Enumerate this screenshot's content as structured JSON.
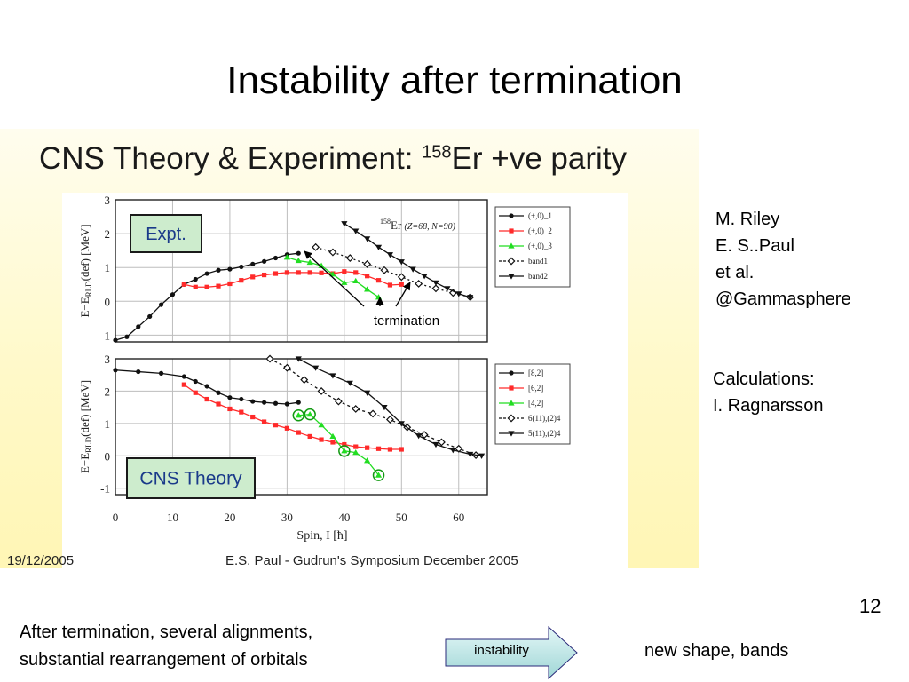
{
  "slide": {
    "title": "Instability after termination",
    "page_number": "12",
    "credits": [
      "M. Riley",
      "E. S..Paul",
      "et al.",
      "@Gammasphere"
    ],
    "calc_lines": [
      "Calculations:",
      "I. Ragnarsson"
    ],
    "bottom_lines": [
      "After termination, several alignments,",
      "substantial rearrangement of orbitals"
    ],
    "arrow_label": "instability",
    "result": "new shape, bands",
    "annotation": "termination"
  },
  "figure": {
    "title_main": "CNS Theory & Experiment: ",
    "title_sup": "158",
    "title_tail": "Er +ve parity",
    "footer_date": "19/12/2005",
    "footer_conf": "E.S. Paul - Gudrun's Symposium December 2005",
    "colors": {
      "black": "#111111",
      "red": "#ff2a2a",
      "green": "#22dd22",
      "box": "#cdeccd"
    }
  },
  "chart_data": [
    {
      "type": "line",
      "panel_label": "Expt.",
      "inset_label": "Er",
      "inset_label_sup": "158",
      "inset_label_sub": "(Z=68, N=90)",
      "ylabel": "E−E",
      "ylabel_sub": "RLD",
      "ylabel_tail": "(def) [MeV]",
      "xlim": [
        0,
        65
      ],
      "ylim": [
        -1.2,
        3
      ],
      "yticks": [
        "-1",
        "0",
        "1",
        "2",
        "3"
      ],
      "xticks": [
        "0",
        "10",
        "20",
        "30",
        "40",
        "50",
        "60"
      ],
      "grid": true,
      "legend_position": "right",
      "series": [
        {
          "name": "(+,0)_1",
          "color": "#111111",
          "marker": "circle",
          "x": [
            0,
            2,
            4,
            6,
            8,
            10,
            12,
            14,
            16,
            18,
            20,
            22,
            24,
            26,
            28,
            30,
            32
          ],
          "y": [
            -1.15,
            -1.05,
            -0.75,
            -0.45,
            -0.1,
            0.2,
            0.5,
            0.65,
            0.82,
            0.92,
            0.95,
            1.02,
            1.1,
            1.18,
            1.28,
            1.38,
            1.42
          ]
        },
        {
          "name": "(+,0)_2",
          "color": "#ff2a2a",
          "marker": "square",
          "x": [
            12,
            14,
            16,
            18,
            20,
            22,
            24,
            26,
            28,
            30,
            32,
            34,
            36,
            38,
            40,
            42,
            44,
            46,
            48,
            50
          ],
          "y": [
            0.5,
            0.42,
            0.42,
            0.45,
            0.52,
            0.62,
            0.72,
            0.78,
            0.82,
            0.85,
            0.85,
            0.85,
            0.84,
            0.82,
            0.88,
            0.85,
            0.75,
            0.62,
            0.48,
            0.5
          ]
        },
        {
          "name": "(+,0)_3",
          "color": "#22dd22",
          "marker": "triangle",
          "x": [
            30,
            32,
            34,
            36,
            38,
            40,
            42,
            44,
            46
          ],
          "y": [
            1.3,
            1.2,
            1.15,
            1.05,
            0.8,
            0.55,
            0.6,
            0.35,
            0.12
          ]
        },
        {
          "name": "band1",
          "color": "#111111",
          "marker": "open-diamond",
          "x": [
            35,
            38,
            41,
            44,
            47,
            50,
            53,
            56,
            59,
            62
          ],
          "y": [
            1.6,
            1.45,
            1.28,
            1.1,
            0.92,
            0.72,
            0.52,
            0.38,
            0.25,
            0.12
          ]
        },
        {
          "name": "band2",
          "color": "#111111",
          "marker": "down-triangle",
          "x": [
            40,
            42,
            44,
            46,
            48,
            50,
            52,
            54,
            56,
            58,
            60,
            62
          ],
          "y": [
            2.3,
            2.08,
            1.85,
            1.6,
            1.38,
            1.17,
            0.95,
            0.75,
            0.55,
            0.38,
            0.22,
            0.12
          ]
        }
      ]
    },
    {
      "type": "line",
      "panel_label": "CNS Theory",
      "ylabel": "E−E",
      "ylabel_sub": "RLD",
      "ylabel_tail": "(def) [MeV]",
      "xlabel": "Spin, I [ħ]",
      "xlim": [
        0,
        65
      ],
      "ylim": [
        -1.2,
        3
      ],
      "yticks": [
        "-1",
        "0",
        "1",
        "2",
        "3"
      ],
      "xticks": [
        "0",
        "10",
        "20",
        "30",
        "40",
        "50",
        "60"
      ],
      "grid": true,
      "legend_position": "right",
      "series": [
        {
          "name": "[8,2]",
          "color": "#111111",
          "marker": "circle",
          "x": [
            0,
            4,
            8,
            12,
            14,
            16,
            18,
            20,
            22,
            24,
            26,
            28,
            30,
            32
          ],
          "y": [
            2.65,
            2.6,
            2.55,
            2.45,
            2.3,
            2.15,
            1.95,
            1.8,
            1.75,
            1.68,
            1.65,
            1.62,
            1.6,
            1.65
          ]
        },
        {
          "name": "[6,2]",
          "color": "#ff2a2a",
          "marker": "square",
          "x": [
            12,
            14,
            16,
            18,
            20,
            22,
            24,
            26,
            28,
            30,
            32,
            34,
            36,
            38,
            40,
            42,
            44,
            46,
            48,
            50
          ],
          "y": [
            2.2,
            1.95,
            1.75,
            1.6,
            1.45,
            1.35,
            1.2,
            1.05,
            0.95,
            0.85,
            0.72,
            0.6,
            0.5,
            0.42,
            0.35,
            0.28,
            0.25,
            0.22,
            0.2,
            0.2
          ]
        },
        {
          "name": "[4,2]",
          "color": "#22dd22",
          "marker": "triangle",
          "x": [
            32,
            34,
            36,
            38,
            40,
            42,
            44,
            46
          ],
          "y": [
            1.25,
            1.28,
            0.95,
            0.6,
            0.15,
            0.1,
            -0.15,
            -0.6
          ]
        },
        {
          "name": "6(11),(2)4",
          "color": "#111111",
          "marker": "open-diamond",
          "x": [
            27,
            30,
            33,
            36,
            39,
            42,
            45,
            48,
            51,
            54,
            57,
            60,
            63
          ],
          "y": [
            3.0,
            2.72,
            2.35,
            2.0,
            1.68,
            1.45,
            1.3,
            1.12,
            0.88,
            0.65,
            0.42,
            0.22,
            0.02
          ]
        },
        {
          "name": "5(11),(2)4",
          "color": "#111111",
          "marker": "down-triangle",
          "x": [
            32,
            35,
            38,
            41,
            44,
            47,
            50,
            53,
            56,
            59,
            62,
            64
          ],
          "y": [
            3.0,
            2.72,
            2.48,
            2.25,
            1.95,
            1.5,
            1.0,
            0.62,
            0.35,
            0.18,
            0.05,
            0.0
          ]
        }
      ],
      "circled_points": [
        [
          32,
          1.25
        ],
        [
          34,
          1.28
        ],
        [
          40,
          0.15
        ],
        [
          46,
          -0.6
        ]
      ]
    }
  ]
}
